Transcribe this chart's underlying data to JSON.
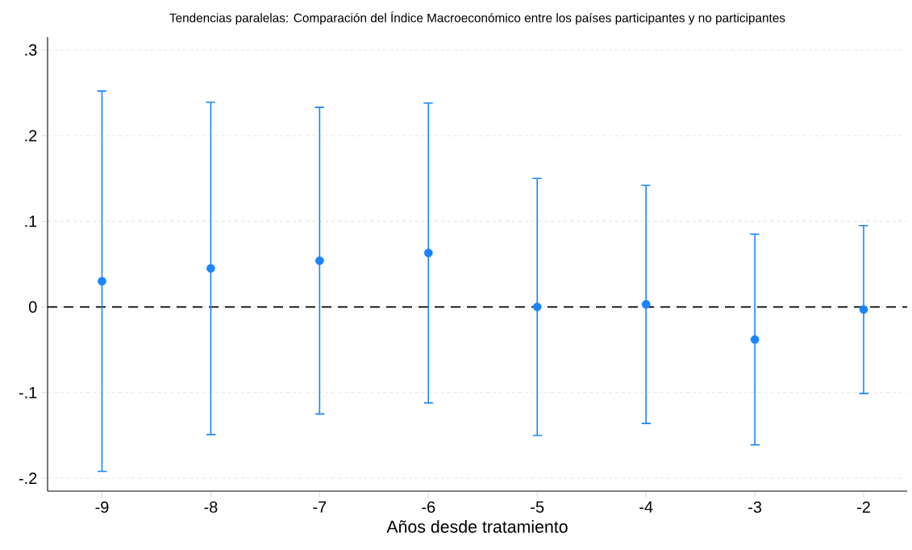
{
  "chart_data": {
    "type": "scatter",
    "title": "Tendencias paralelas: Comparación del Índice Macroeconómico entre los países participantes y no participantes",
    "xlabel": "Años desde tratamiento",
    "x": [
      -9,
      -8,
      -7,
      -6,
      -5,
      -4,
      -3,
      -2
    ],
    "series": [
      {
        "color": "#1a85ff",
        "values": [
          0.03,
          0.045,
          0.054,
          0.063,
          0.0,
          0.003,
          -0.038,
          -0.003
        ],
        "errors": [
          0.222,
          0.194,
          0.179,
          0.175,
          0.15,
          0.139,
          0.123,
          0.098
        ]
      }
    ],
    "marker": "circle",
    "xlim": [
      -9.5,
      -1.6
    ],
    "xticks": [
      -9,
      -8,
      -7,
      -6,
      -5,
      -4,
      -3,
      -2
    ],
    "ylim": [
      -0.215,
      0.315
    ],
    "yticks": [
      {
        "value": -0.2,
        "label": "-.2"
      },
      {
        "value": -0.1,
        "label": "-.1"
      },
      0,
      {
        "value": 0.1,
        "label": ".1"
      },
      {
        "value": 0.2,
        "label": ".2"
      },
      {
        "value": 0.3,
        "label": ".3"
      }
    ],
    "grid": "y",
    "ref_lines": [
      {
        "axis": "y",
        "value": 0,
        "color": "#000000",
        "line_style": "dashed"
      }
    ]
  }
}
